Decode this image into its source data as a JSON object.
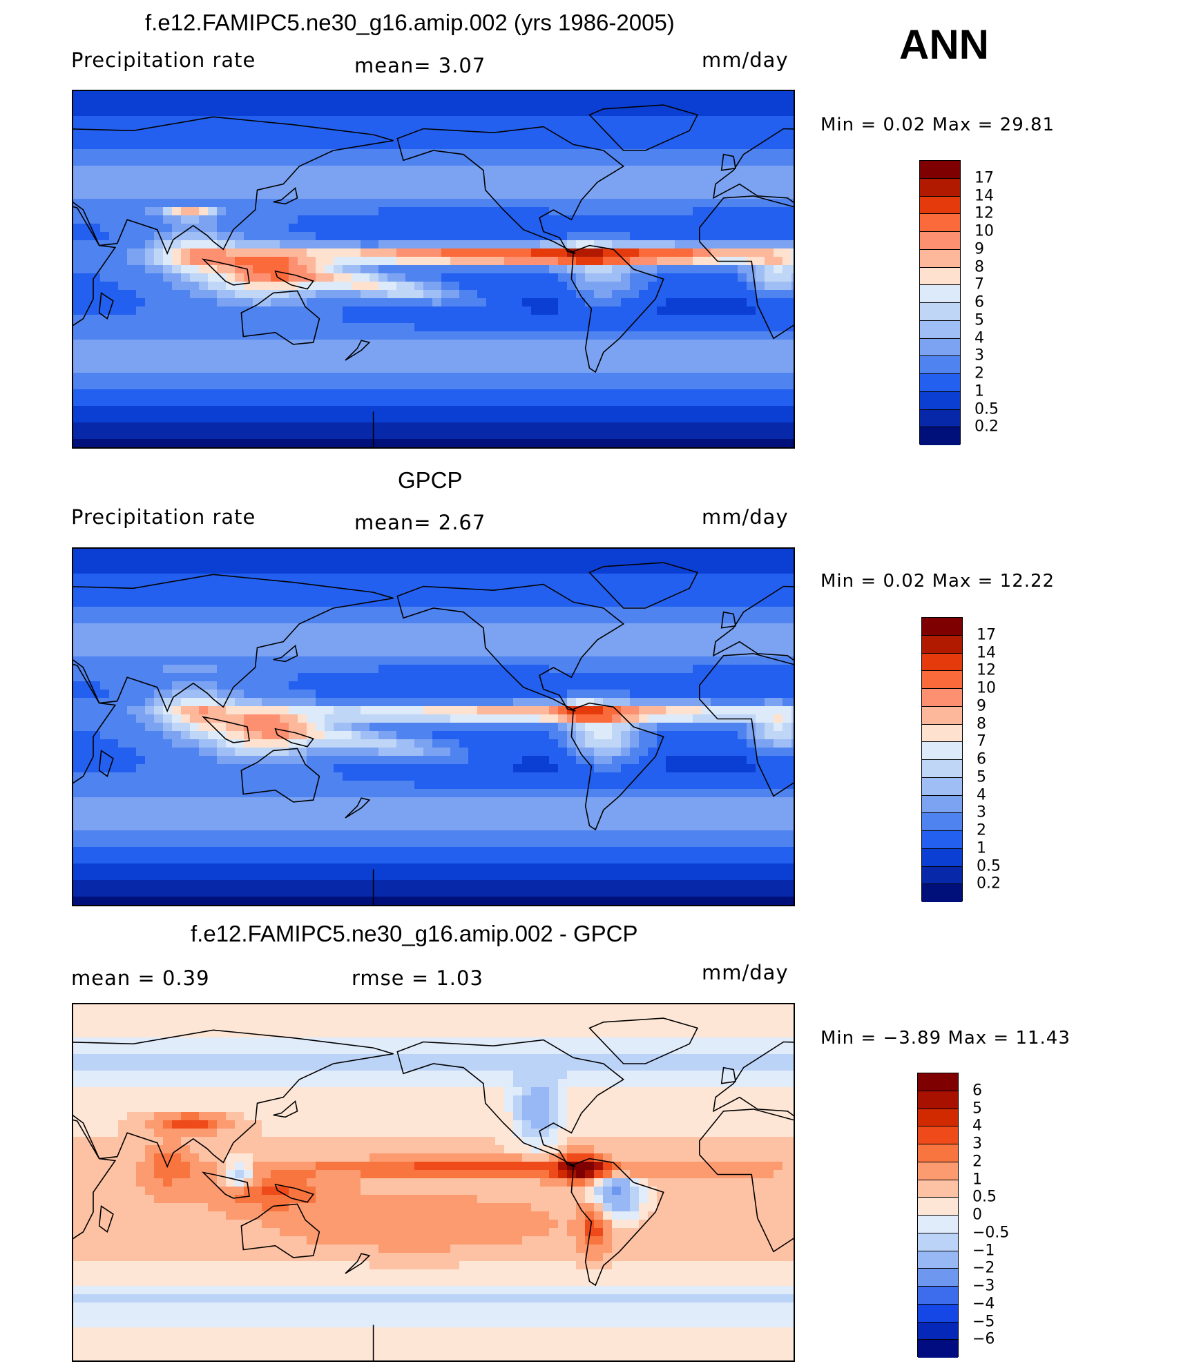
{
  "annotation": "ANN",
  "panels": [
    {
      "id": "model",
      "title": "f.e12.FAMIPC5.ne30_g16.amip.002 (yrs 1986-2005)",
      "left_label": "Precipitation  rate",
      "center_label": "mean=    3.07",
      "units": "mm/day",
      "minmax": "Min  =     0.02  Max  =    29.81",
      "colorbar": {
        "labels": [
          "17",
          "14",
          "12",
          "10",
          "9",
          "8",
          "7",
          "6",
          "5",
          "4",
          "3",
          "2",
          "1",
          "0.5",
          "0.2"
        ],
        "colors": [
          "#7f0000",
          "#b21a00",
          "#e43a0c",
          "#fb6a3a",
          "#fc9070",
          "#fdb79b",
          "#fee2cf",
          "#dceaf9",
          "#c0d6f7",
          "#9fbef5",
          "#7ba3f2",
          "#4f83f0",
          "#2460ef",
          "#0b3fd4",
          "#0728a8",
          "#00107a"
        ]
      },
      "field": {
        "type": "model",
        "itcz": 0.92,
        "spcz": 0.75,
        "amazon": 0.45,
        "maritime": 0.85,
        "himalaya": 1.0
      }
    },
    {
      "id": "obs",
      "title": "GPCP",
      "left_label": "Precipitation  rate",
      "center_label": "mean=    2.67",
      "units": "mm/day",
      "minmax": "Min  =     0.02  Max  =    12.22",
      "colorbar": {
        "labels": [
          "17",
          "14",
          "12",
          "10",
          "9",
          "8",
          "7",
          "6",
          "5",
          "4",
          "3",
          "2",
          "1",
          "0.5",
          "0.2"
        ],
        "colors": [
          "#7f0000",
          "#b21a00",
          "#e43a0c",
          "#fb6a3a",
          "#fc9070",
          "#fdb79b",
          "#fee2cf",
          "#dceaf9",
          "#c0d6f7",
          "#9fbef5",
          "#7ba3f2",
          "#4f83f0",
          "#2460ef",
          "#0b3fd4",
          "#0728a8",
          "#00107a"
        ]
      },
      "field": {
        "type": "obs",
        "itcz": 0.62,
        "spcz": 0.55,
        "amazon": 0.75,
        "maritime": 0.8,
        "himalaya": 0.2
      }
    },
    {
      "id": "diff",
      "title": "f.e12.FAMIPC5.ne30_g16.amip.002 - GPCP",
      "left_label": "mean  =      0.39",
      "center_label": "rmse  =      1.03",
      "units": "mm/day",
      "minmax": "Min  =   −3.89  Max  =    11.43",
      "colorbar": {
        "labels": [
          "6",
          "5",
          "4",
          "3",
          "2",
          "1",
          "0.5",
          "0",
          "−0.5",
          "−1",
          "−2",
          "−3",
          "−4",
          "−5",
          "−6"
        ],
        "colors": [
          "#7f0000",
          "#a81000",
          "#d12a00",
          "#ef4a1a",
          "#f8753f",
          "#fc9a70",
          "#fdc1a4",
          "#fee6d6",
          "#e1ecfb",
          "#bcd3f8",
          "#97b8f4",
          "#6e98f0",
          "#3d6ded",
          "#1447e6",
          "#0628b8",
          "#000c80"
        ]
      },
      "field": {
        "type": "diff"
      }
    }
  ]
}
